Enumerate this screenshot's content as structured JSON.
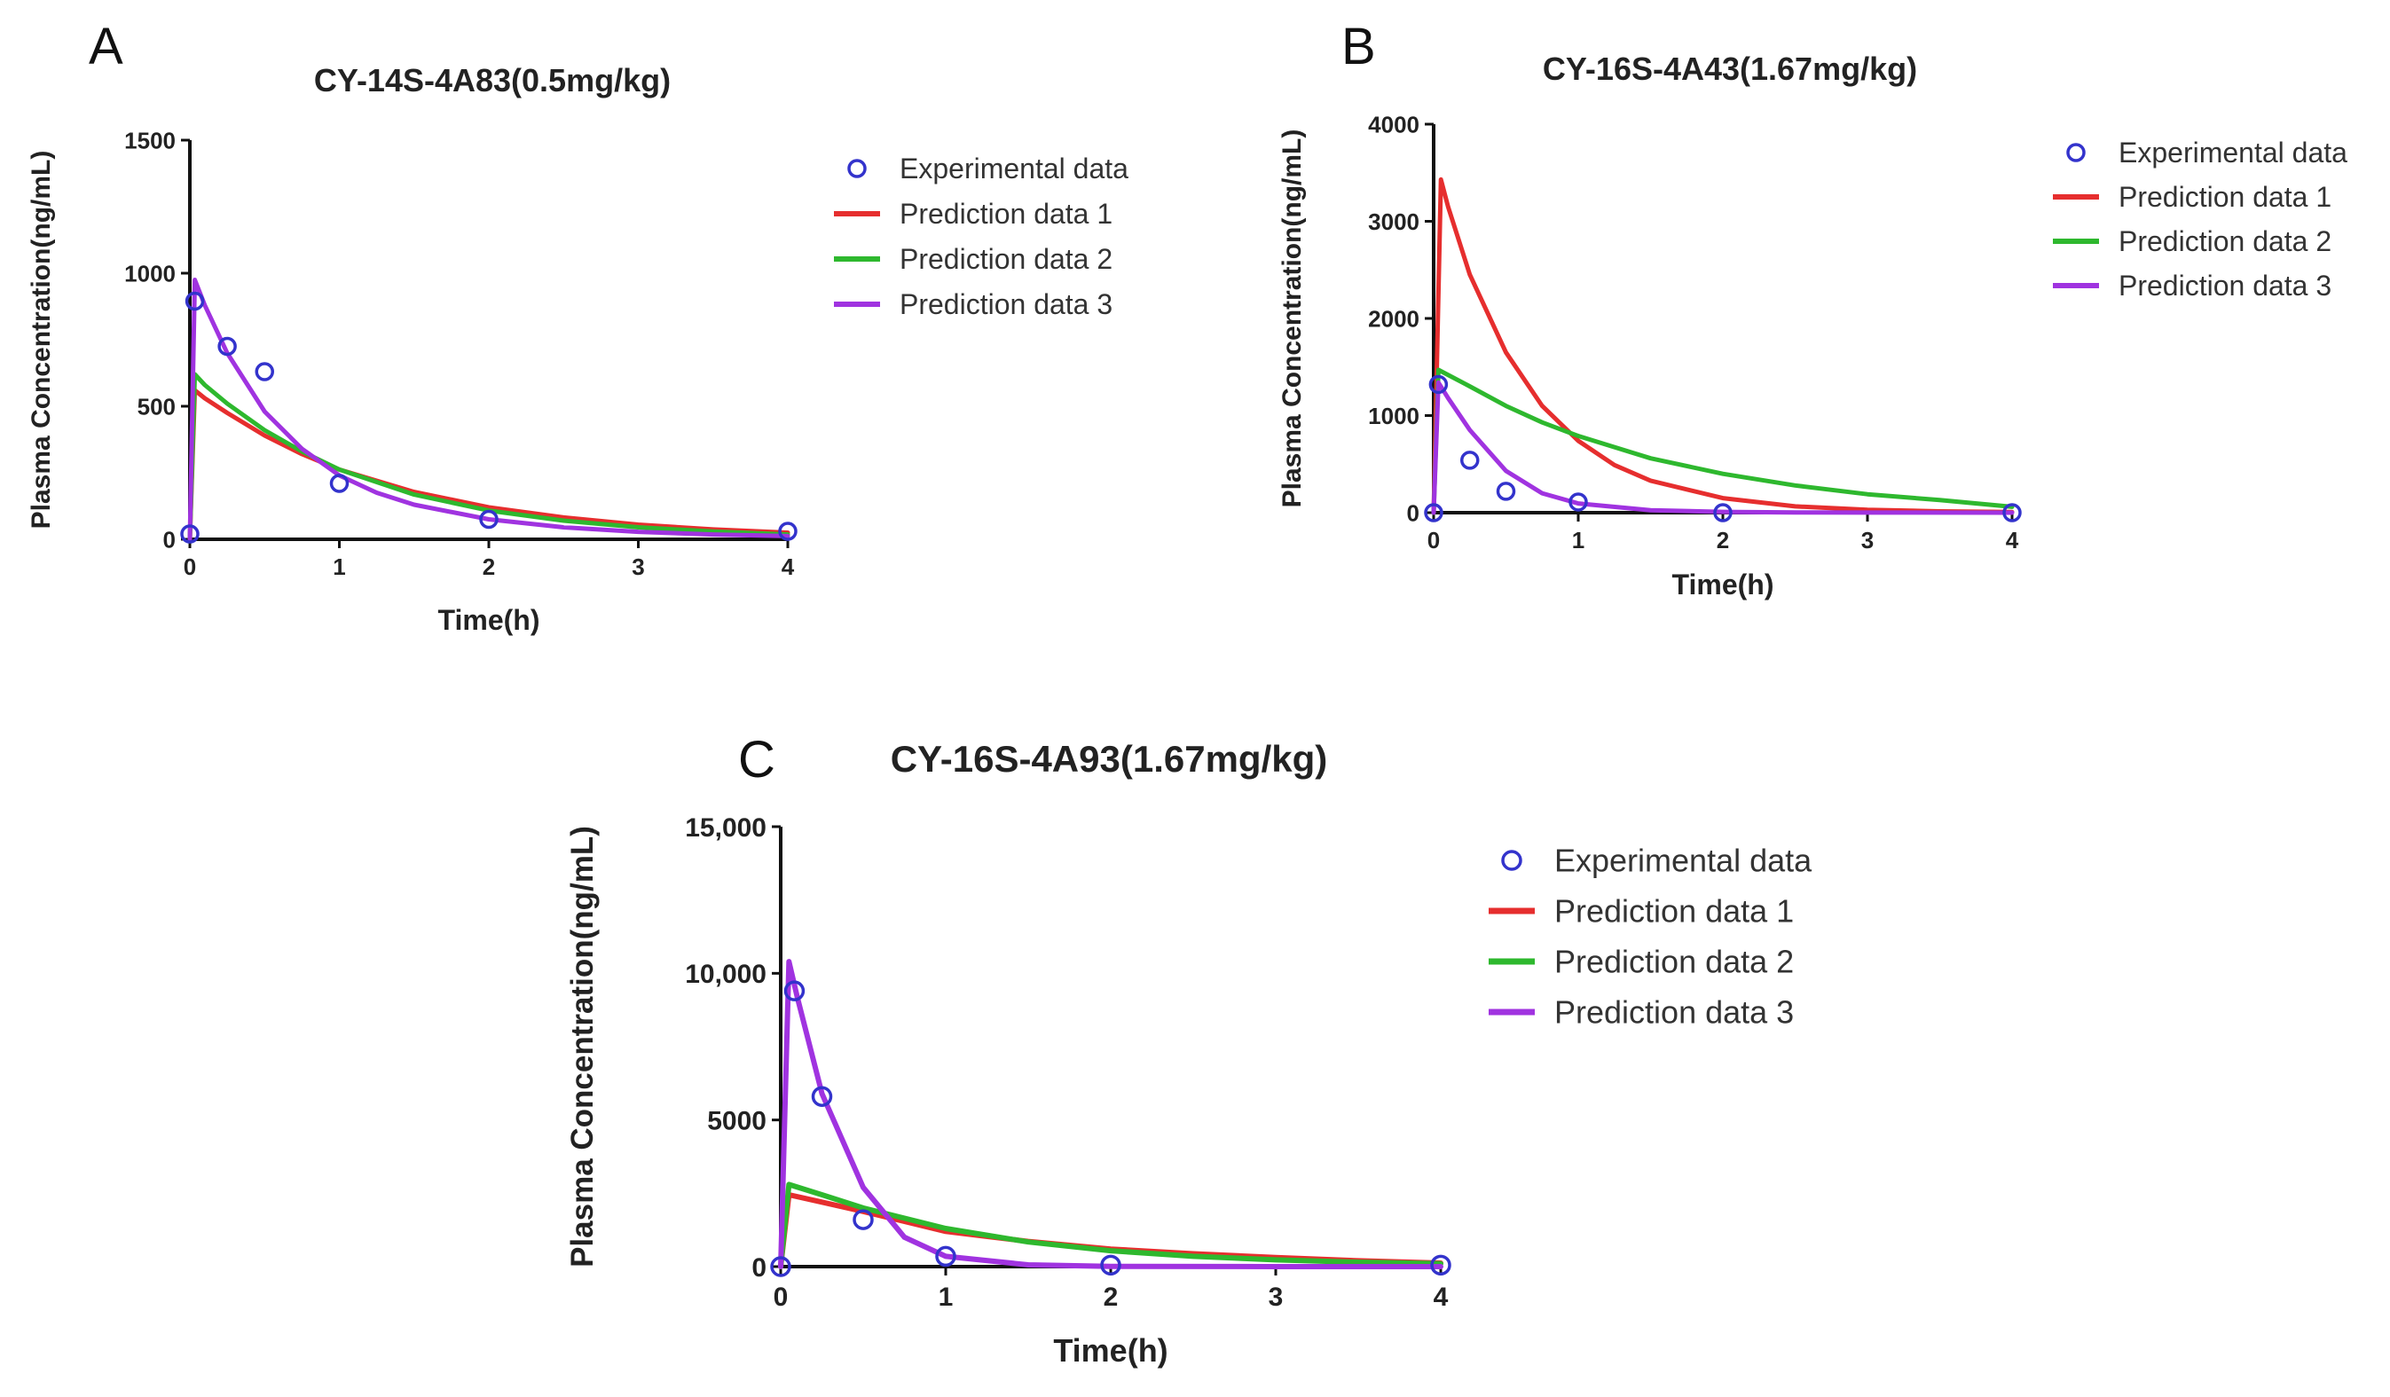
{
  "chart_data": [
    {
      "panel": "A",
      "type": "line",
      "title": "CY-14S-4A83(0.5mg/kg)",
      "xlabel": "Time(h)",
      "ylabel": "Plasma Concentration(ng/mL)",
      "xlim": [
        0,
        4
      ],
      "ylim": [
        0,
        1500
      ],
      "xticks": [
        0,
        1,
        2,
        3,
        4
      ],
      "xtick_labels": [
        "0",
        "1",
        "2",
        "3",
        "4"
      ],
      "yticks": [
        0,
        500,
        1000,
        1500
      ],
      "ytick_labels": [
        "0",
        "500",
        "1000",
        "1500"
      ],
      "grid": false,
      "legend": "right",
      "series": [
        {
          "name": "Experimental data",
          "kind": "scatter",
          "color": "#3333cc",
          "x": [
            0,
            0.033,
            0.25,
            0.5,
            1,
            2,
            4
          ],
          "y": [
            20,
            895,
            725,
            630,
            210,
            75,
            30
          ]
        },
        {
          "name": "Prediction data 1",
          "kind": "line",
          "color": "#e62e2e",
          "x": [
            0,
            0.033,
            0.1,
            0.25,
            0.5,
            0.75,
            1,
            1.5,
            2,
            2.5,
            3,
            3.5,
            4
          ],
          "y": [
            0,
            560,
            530,
            475,
            390,
            320,
            262,
            178,
            120,
            82,
            55,
            37,
            25
          ]
        },
        {
          "name": "Prediction data 2",
          "kind": "line",
          "color": "#2eb82e",
          "x": [
            0,
            0.033,
            0.1,
            0.25,
            0.5,
            0.75,
            1,
            1.5,
            2,
            2.5,
            3,
            3.5,
            4
          ],
          "y": [
            0,
            620,
            580,
            510,
            410,
            330,
            262,
            168,
            108,
            70,
            45,
            29,
            18
          ]
        },
        {
          "name": "Prediction data 3",
          "kind": "line",
          "color": "#a033e0",
          "x": [
            0,
            0.033,
            0.1,
            0.25,
            0.5,
            0.75,
            1,
            1.25,
            1.5,
            2,
            2.5,
            3,
            3.5,
            4
          ],
          "y": [
            0,
            975,
            880,
            700,
            480,
            340,
            240,
            175,
            130,
            75,
            45,
            28,
            18,
            12
          ]
        }
      ]
    },
    {
      "panel": "B",
      "type": "line",
      "title": "CY-16S-4A43(1.67mg/kg)",
      "xlabel": "Time(h)",
      "ylabel": "Plasma Concentration(ng/mL)",
      "xlim": [
        0,
        4
      ],
      "ylim": [
        0,
        4000
      ],
      "xticks": [
        0,
        1,
        2,
        3,
        4
      ],
      "xtick_labels": [
        "0",
        "1",
        "2",
        "3",
        "4"
      ],
      "yticks": [
        0,
        1000,
        2000,
        3000,
        4000
      ],
      "ytick_labels": [
        "0",
        "1000",
        "2000",
        "3000",
        "4000"
      ],
      "grid": false,
      "legend": "right",
      "series": [
        {
          "name": "Experimental data",
          "kind": "scatter",
          "color": "#3333cc",
          "x": [
            0,
            0.033,
            0.25,
            0.5,
            1,
            2,
            4
          ],
          "y": [
            0,
            1320,
            540,
            220,
            110,
            0,
            0
          ]
        },
        {
          "name": "Prediction data 1",
          "kind": "line",
          "color": "#e62e2e",
          "x": [
            0,
            0.05,
            0.1,
            0.25,
            0.5,
            0.75,
            1,
            1.25,
            1.5,
            2,
            2.5,
            3,
            3.5,
            4
          ],
          "y": [
            0,
            3430,
            3150,
            2450,
            1650,
            1100,
            740,
            490,
            330,
            150,
            65,
            30,
            14,
            6
          ]
        },
        {
          "name": "Prediction data 2",
          "kind": "line",
          "color": "#2eb82e",
          "x": [
            0,
            0.033,
            0.25,
            0.5,
            0.75,
            1,
            1.5,
            2,
            2.5,
            3,
            3.5,
            4
          ],
          "y": [
            0,
            1470,
            1300,
            1100,
            930,
            790,
            560,
            400,
            280,
            190,
            130,
            60
          ]
        },
        {
          "name": "Prediction data 3",
          "kind": "line",
          "color": "#a033e0",
          "x": [
            0,
            0.033,
            0.1,
            0.25,
            0.5,
            0.75,
            1,
            1.5,
            2,
            2.5,
            3,
            4
          ],
          "y": [
            0,
            1340,
            1180,
            850,
            430,
            200,
            95,
            25,
            8,
            3,
            1,
            0
          ]
        }
      ]
    },
    {
      "panel": "C",
      "type": "line",
      "title": "CY-16S-4A93(1.67mg/kg)",
      "xlabel": "Time(h)",
      "ylabel": "Plasma Concentration(ng/mL)",
      "xlim": [
        0,
        4
      ],
      "ylim": [
        0,
        15000
      ],
      "xticks": [
        0,
        1,
        2,
        3,
        4
      ],
      "xtick_labels": [
        "0",
        "1",
        "2",
        "3",
        "4"
      ],
      "yticks": [
        0,
        5000,
        10000,
        15000
      ],
      "ytick_labels": [
        "0",
        "5000",
        "10,000",
        "15,000"
      ],
      "grid": false,
      "legend": "right",
      "series": [
        {
          "name": "Experimental data",
          "kind": "scatter",
          "color": "#3333cc",
          "x": [
            0,
            0.083,
            0.25,
            0.5,
            1,
            2,
            4
          ],
          "y": [
            0,
            9400,
            5800,
            1600,
            350,
            50,
            50
          ]
        },
        {
          "name": "Prediction data 1",
          "kind": "line",
          "color": "#e62e2e",
          "x": [
            0,
            0.05,
            0.25,
            0.5,
            1,
            1.5,
            2,
            2.5,
            3,
            3.5,
            4
          ],
          "y": [
            0,
            2450,
            2200,
            1880,
            1200,
            860,
            600,
            440,
            310,
            200,
            120
          ]
        },
        {
          "name": "Prediction data 2",
          "kind": "line",
          "color": "#2eb82e",
          "x": [
            0,
            0.05,
            0.25,
            0.5,
            1,
            1.5,
            2,
            2.5,
            3,
            3.5,
            4
          ],
          "y": [
            0,
            2800,
            2450,
            2000,
            1300,
            840,
            540,
            350,
            230,
            150,
            100
          ]
        },
        {
          "name": "Prediction data 3",
          "kind": "line",
          "color": "#a033e0",
          "x": [
            0,
            0.05,
            0.1,
            0.25,
            0.5,
            0.75,
            1,
            1.5,
            2,
            3,
            4
          ],
          "y": [
            0,
            10400,
            9200,
            5900,
            2700,
            1000,
            350,
            60,
            10,
            0,
            0
          ]
        }
      ]
    }
  ]
}
